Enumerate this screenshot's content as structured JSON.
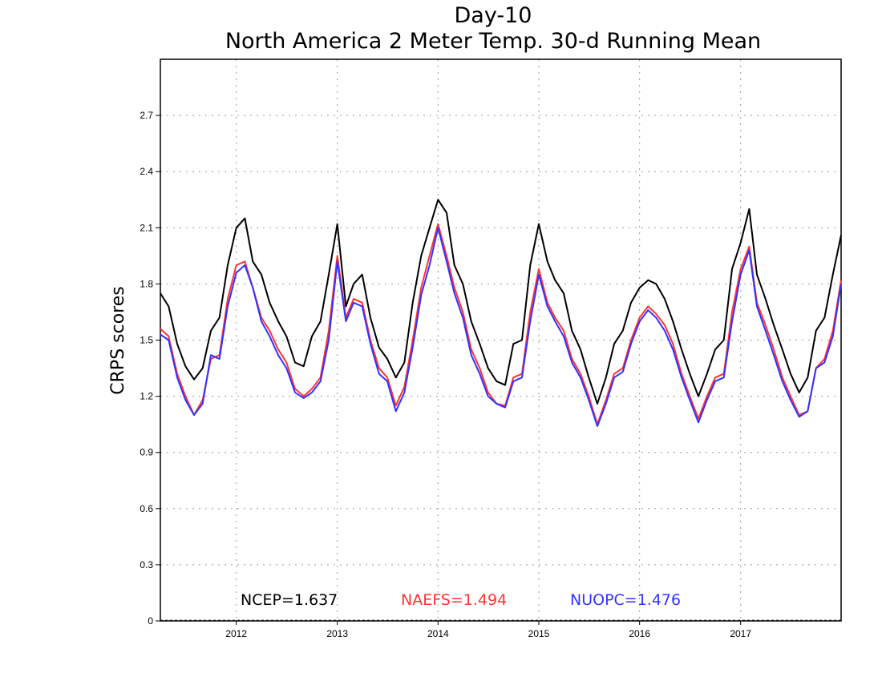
{
  "chart_data": {
    "type": "line",
    "title": "Day-10",
    "subtitle": "North America 2 Meter Temp. 30-d Running Mean",
    "xlabel": "",
    "ylabel": "CRPS scores",
    "xlim": [
      "2011-04-01",
      "2017-12-31"
    ],
    "ylim": [
      0,
      3.0
    ],
    "yticks": [
      0,
      0.3,
      0.6,
      0.9,
      1.2,
      1.5,
      1.8,
      2.1,
      2.4,
      2.7
    ],
    "ytick_labels": [
      "0",
      "0.3",
      "0.6",
      "0.9",
      "1.2",
      "1.5",
      "1.8",
      "2.1",
      "2.4",
      "2.7"
    ],
    "xticks": [
      "2012-01-01",
      "2013-01-01",
      "2014-01-01",
      "2015-01-01",
      "2016-01-01",
      "2017-01-01"
    ],
    "xtick_labels": [
      "2012",
      "2013",
      "2014",
      "2015",
      "2016",
      "2017"
    ],
    "grid": true,
    "legend_placement": "bottom",
    "series": [
      {
        "legend": "NCEP=1.637",
        "color": "#000000",
        "x": [
          "2011-04-01",
          "2011-05-01",
          "2011-06-01",
          "2011-07-01",
          "2011-08-01",
          "2011-09-01",
          "2011-10-01",
          "2011-11-01",
          "2011-12-01",
          "2012-01-01",
          "2012-02-01",
          "2012-03-01",
          "2012-04-01",
          "2012-05-01",
          "2012-06-01",
          "2012-07-01",
          "2012-08-01",
          "2012-09-01",
          "2012-10-01",
          "2012-11-01",
          "2012-12-01",
          "2013-01-01",
          "2013-02-01",
          "2013-03-01",
          "2013-04-01",
          "2013-05-01",
          "2013-06-01",
          "2013-07-01",
          "2013-08-01",
          "2013-09-01",
          "2013-10-01",
          "2013-11-01",
          "2013-12-01",
          "2014-01-01",
          "2014-02-01",
          "2014-03-01",
          "2014-04-01",
          "2014-05-01",
          "2014-06-01",
          "2014-07-01",
          "2014-08-01",
          "2014-09-01",
          "2014-10-01",
          "2014-11-01",
          "2014-12-01",
          "2015-01-01",
          "2015-02-01",
          "2015-03-01",
          "2015-04-01",
          "2015-05-01",
          "2015-06-01",
          "2015-07-01",
          "2015-08-01",
          "2015-09-01",
          "2015-10-01",
          "2015-11-01",
          "2015-12-01",
          "2016-01-01",
          "2016-02-01",
          "2016-03-01",
          "2016-04-01",
          "2016-05-01",
          "2016-06-01",
          "2016-07-01",
          "2016-08-01",
          "2016-09-01",
          "2016-10-01",
          "2016-11-01",
          "2016-12-01",
          "2017-01-01",
          "2017-02-01",
          "2017-03-01",
          "2017-04-01",
          "2017-05-01",
          "2017-06-01",
          "2017-07-01",
          "2017-08-01",
          "2017-09-01",
          "2017-10-01",
          "2017-11-01",
          "2017-12-01",
          "2017-12-31"
        ],
        "y": [
          1.75,
          1.68,
          1.48,
          1.36,
          1.29,
          1.35,
          1.55,
          1.62,
          1.9,
          2.1,
          2.15,
          1.92,
          1.85,
          1.7,
          1.6,
          1.52,
          1.38,
          1.36,
          1.52,
          1.6,
          1.85,
          2.12,
          1.68,
          1.8,
          1.85,
          1.62,
          1.46,
          1.4,
          1.3,
          1.38,
          1.7,
          1.95,
          2.1,
          2.25,
          2.18,
          1.9,
          1.8,
          1.6,
          1.48,
          1.35,
          1.28,
          1.26,
          1.48,
          1.5,
          1.9,
          2.12,
          1.92,
          1.82,
          1.75,
          1.55,
          1.45,
          1.3,
          1.16,
          1.3,
          1.48,
          1.55,
          1.7,
          1.78,
          1.82,
          1.8,
          1.72,
          1.6,
          1.45,
          1.32,
          1.2,
          1.32,
          1.45,
          1.5,
          1.88,
          2.02,
          2.2,
          1.85,
          1.72,
          1.58,
          1.45,
          1.32,
          1.22,
          1.3,
          1.55,
          1.62,
          1.85,
          2.06
        ]
      },
      {
        "legend": "NAEFS=1.494",
        "color": "#ff3333",
        "x": [
          "2011-04-01",
          "2011-05-01",
          "2011-06-01",
          "2011-07-01",
          "2011-08-01",
          "2011-09-01",
          "2011-10-01",
          "2011-11-01",
          "2011-12-01",
          "2012-01-01",
          "2012-02-01",
          "2012-03-01",
          "2012-04-01",
          "2012-05-01",
          "2012-06-01",
          "2012-07-01",
          "2012-08-01",
          "2012-09-01",
          "2012-10-01",
          "2012-11-01",
          "2012-12-01",
          "2013-01-01",
          "2013-02-01",
          "2013-03-01",
          "2013-04-01",
          "2013-05-01",
          "2013-06-01",
          "2013-07-01",
          "2013-08-01",
          "2013-09-01",
          "2013-10-01",
          "2013-11-01",
          "2013-12-01",
          "2014-01-01",
          "2014-02-01",
          "2014-03-01",
          "2014-04-01",
          "2014-05-01",
          "2014-06-01",
          "2014-07-01",
          "2014-08-01",
          "2014-09-01",
          "2014-10-01",
          "2014-11-01",
          "2014-12-01",
          "2015-01-01",
          "2015-02-01",
          "2015-03-01",
          "2015-04-01",
          "2015-05-01",
          "2015-06-01",
          "2015-07-01",
          "2015-08-01",
          "2015-09-01",
          "2015-10-01",
          "2015-11-01",
          "2015-12-01",
          "2016-01-01",
          "2016-02-01",
          "2016-03-01",
          "2016-04-01",
          "2016-05-01",
          "2016-06-01",
          "2016-07-01",
          "2016-08-01",
          "2016-09-01",
          "2016-10-01",
          "2016-11-01",
          "2016-12-01",
          "2017-01-01",
          "2017-02-01",
          "2017-03-01",
          "2017-04-01",
          "2017-05-01",
          "2017-06-01",
          "2017-07-01",
          "2017-08-01",
          "2017-09-01",
          "2017-10-01",
          "2017-11-01",
          "2017-12-01",
          "2017-12-31"
        ],
        "y": [
          1.56,
          1.52,
          1.32,
          1.2,
          1.1,
          1.18,
          1.4,
          1.42,
          1.72,
          1.9,
          1.92,
          1.78,
          1.62,
          1.55,
          1.45,
          1.38,
          1.24,
          1.2,
          1.24,
          1.3,
          1.55,
          1.95,
          1.62,
          1.72,
          1.7,
          1.5,
          1.35,
          1.3,
          1.15,
          1.25,
          1.5,
          1.78,
          1.95,
          2.12,
          1.95,
          1.78,
          1.65,
          1.45,
          1.35,
          1.22,
          1.16,
          1.15,
          1.3,
          1.32,
          1.65,
          1.88,
          1.7,
          1.62,
          1.55,
          1.4,
          1.32,
          1.2,
          1.05,
          1.18,
          1.32,
          1.35,
          1.5,
          1.62,
          1.68,
          1.64,
          1.58,
          1.48,
          1.32,
          1.2,
          1.08,
          1.2,
          1.3,
          1.32,
          1.65,
          1.88,
          2.0,
          1.7,
          1.58,
          1.45,
          1.3,
          1.2,
          1.1,
          1.12,
          1.35,
          1.4,
          1.55,
          1.82
        ]
      },
      {
        "legend": "NUOPC=1.476",
        "color": "#3333ff",
        "x": [
          "2011-04-01",
          "2011-05-01",
          "2011-06-01",
          "2011-07-01",
          "2011-08-01",
          "2011-09-01",
          "2011-10-01",
          "2011-11-01",
          "2011-12-01",
          "2012-01-01",
          "2012-02-01",
          "2012-03-01",
          "2012-04-01",
          "2012-05-01",
          "2012-06-01",
          "2012-07-01",
          "2012-08-01",
          "2012-09-01",
          "2012-10-01",
          "2012-11-01",
          "2012-12-01",
          "2013-01-01",
          "2013-02-01",
          "2013-03-01",
          "2013-04-01",
          "2013-05-01",
          "2013-06-01",
          "2013-07-01",
          "2013-08-01",
          "2013-09-01",
          "2013-10-01",
          "2013-11-01",
          "2013-12-01",
          "2014-01-01",
          "2014-02-01",
          "2014-03-01",
          "2014-04-01",
          "2014-05-01",
          "2014-06-01",
          "2014-07-01",
          "2014-08-01",
          "2014-09-01",
          "2014-10-01",
          "2014-11-01",
          "2014-12-01",
          "2015-01-01",
          "2015-02-01",
          "2015-03-01",
          "2015-04-01",
          "2015-05-01",
          "2015-06-01",
          "2015-07-01",
          "2015-08-01",
          "2015-09-01",
          "2015-10-01",
          "2015-11-01",
          "2015-12-01",
          "2016-01-01",
          "2016-02-01",
          "2016-03-01",
          "2016-04-01",
          "2016-05-01",
          "2016-06-01",
          "2016-07-01",
          "2016-08-01",
          "2016-09-01",
          "2016-10-01",
          "2016-11-01",
          "2016-12-01",
          "2017-01-01",
          "2017-02-01",
          "2017-03-01",
          "2017-04-01",
          "2017-05-01",
          "2017-06-01",
          "2017-07-01",
          "2017-08-01",
          "2017-09-01",
          "2017-10-01",
          "2017-11-01",
          "2017-12-01",
          "2017-12-31"
        ],
        "y": [
          1.53,
          1.5,
          1.3,
          1.18,
          1.1,
          1.16,
          1.42,
          1.4,
          1.68,
          1.86,
          1.9,
          1.78,
          1.6,
          1.52,
          1.42,
          1.35,
          1.22,
          1.19,
          1.22,
          1.28,
          1.5,
          1.92,
          1.6,
          1.7,
          1.68,
          1.48,
          1.32,
          1.28,
          1.12,
          1.22,
          1.46,
          1.74,
          1.9,
          2.1,
          1.92,
          1.75,
          1.62,
          1.42,
          1.32,
          1.2,
          1.16,
          1.14,
          1.28,
          1.3,
          1.6,
          1.85,
          1.68,
          1.6,
          1.52,
          1.38,
          1.3,
          1.18,
          1.04,
          1.16,
          1.3,
          1.33,
          1.48,
          1.6,
          1.66,
          1.62,
          1.55,
          1.45,
          1.3,
          1.18,
          1.06,
          1.18,
          1.28,
          1.3,
          1.6,
          1.85,
          1.98,
          1.68,
          1.55,
          1.42,
          1.28,
          1.18,
          1.09,
          1.12,
          1.35,
          1.38,
          1.52,
          1.8
        ]
      }
    ]
  }
}
